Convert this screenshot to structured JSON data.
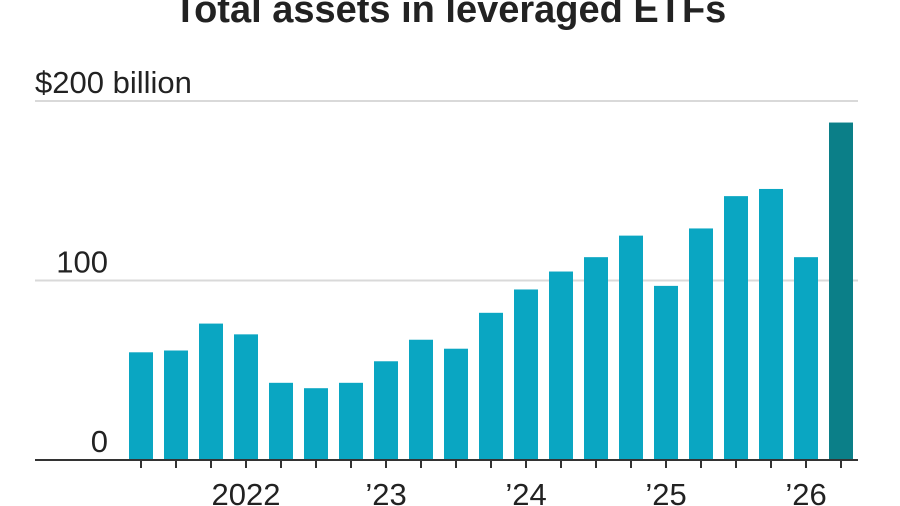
{
  "chart_data": {
    "type": "bar",
    "title": "Total assets in leveraged ETFs",
    "categories": [
      null,
      null,
      null,
      "2022",
      null,
      null,
      null,
      "’23",
      null,
      null,
      null,
      "’24",
      null,
      null,
      null,
      "’25",
      null,
      null,
      null,
      "’26",
      null
    ],
    "values": [
      60,
      61,
      76,
      70,
      43,
      40,
      43,
      55,
      67,
      62,
      82,
      95,
      105,
      113,
      125,
      97,
      129,
      147,
      151,
      113,
      188
    ],
    "colors": [
      "#0aa6c2",
      "#0aa6c2",
      "#0aa6c2",
      "#0aa6c2",
      "#0aa6c2",
      "#0aa6c2",
      "#0aa6c2",
      "#0aa6c2",
      "#0aa6c2",
      "#0aa6c2",
      "#0aa6c2",
      "#0aa6c2",
      "#0aa6c2",
      "#0aa6c2",
      "#0aa6c2",
      "#0aa6c2",
      "#0aa6c2",
      "#0aa6c2",
      "#0aa6c2",
      "#0aa6c2",
      "#0b7f88"
    ],
    "ylim": [
      0,
      200
    ],
    "yticks": [
      0,
      100,
      {
        "value": 200,
        "label": "$200 billion"
      }
    ],
    "grid": true
  }
}
